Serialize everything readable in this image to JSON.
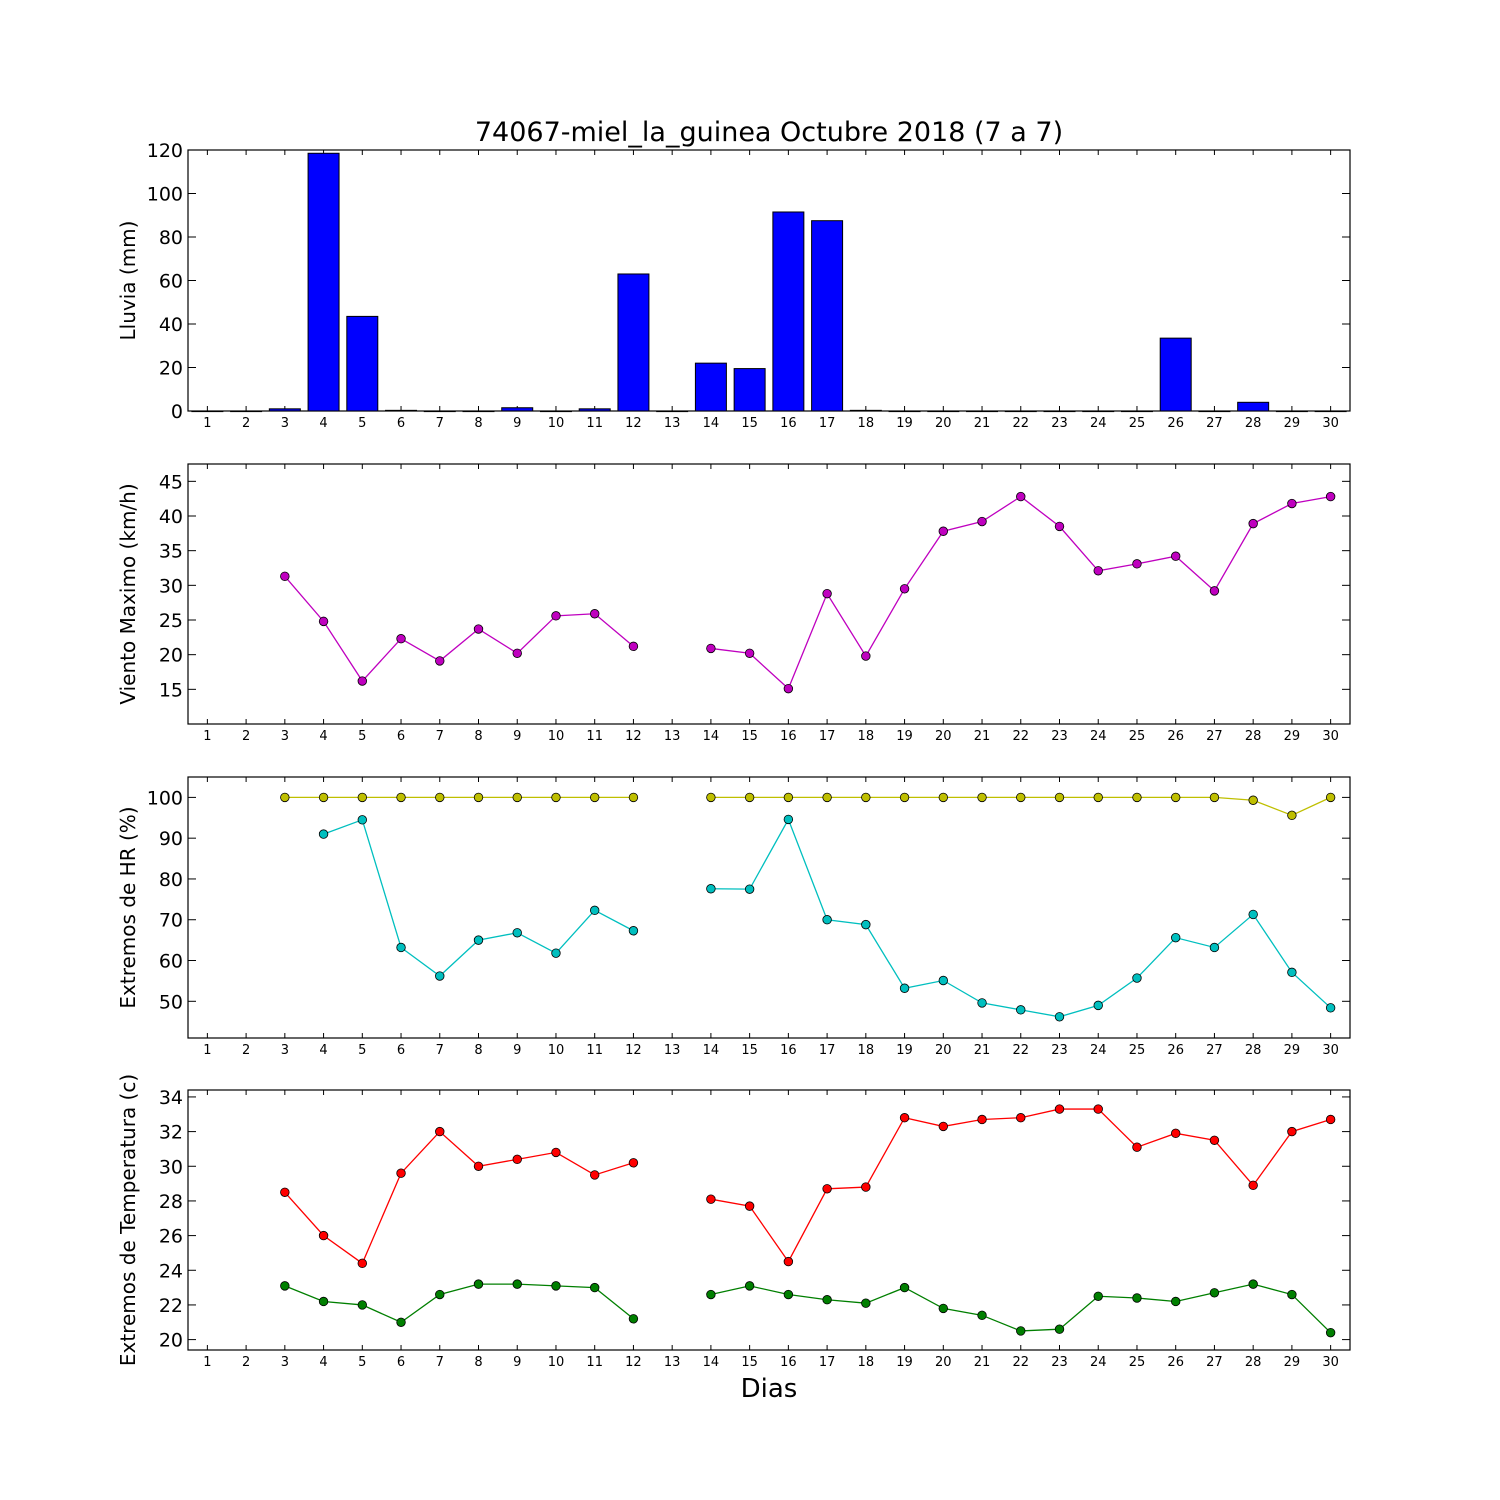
{
  "title": "74067-miel_la_guinea Octubre 2018  (7 a 7)",
  "xlabel": "Dias",
  "chart_data": [
    {
      "type": "bar",
      "ylabel": "Lluvia (mm)",
      "ylim": [
        0,
        120
      ],
      "yticks": [
        0,
        20,
        40,
        60,
        80,
        100,
        120
      ],
      "grid": false,
      "x": [
        1,
        2,
        3,
        4,
        5,
        6,
        7,
        8,
        9,
        10,
        11,
        12,
        13,
        14,
        15,
        16,
        17,
        18,
        19,
        20,
        21,
        22,
        23,
        24,
        25,
        26,
        27,
        28,
        29,
        30
      ],
      "series": [
        {
          "color": "#0000ff",
          "values": [
            0,
            0,
            1,
            118.5,
            43.5,
            0.3,
            0,
            0,
            1.5,
            0,
            1,
            63,
            0,
            22,
            19.5,
            91.5,
            87.5,
            0.3,
            0,
            0,
            0,
            0,
            0,
            0,
            0,
            33.5,
            0,
            4,
            0,
            0
          ]
        }
      ]
    },
    {
      "type": "line",
      "ylabel": "Viento Maximo (km/h)",
      "ylim": [
        10,
        47.5
      ],
      "yticks": [
        15,
        20,
        25,
        30,
        35,
        40,
        45
      ],
      "grid": false,
      "x": [
        1,
        2,
        3,
        4,
        5,
        6,
        7,
        8,
        9,
        10,
        11,
        12,
        13,
        14,
        15,
        16,
        17,
        18,
        19,
        20,
        21,
        22,
        23,
        24,
        25,
        26,
        27,
        28,
        29,
        30
      ],
      "series": [
        {
          "color": "#bf00bf",
          "values": [
            null,
            null,
            31.3,
            24.8,
            16.2,
            22.3,
            19.1,
            23.7,
            20.2,
            25.6,
            25.9,
            21.2,
            null,
            20.9,
            20.2,
            15.1,
            28.8,
            19.8,
            29.5,
            37.8,
            39.2,
            42.8,
            38.5,
            32.1,
            33.1,
            34.2,
            29.2,
            38.9,
            41.8,
            42.8
          ]
        }
      ]
    },
    {
      "type": "line",
      "ylabel": "Extremos de HR (%)",
      "ylim": [
        41,
        105
      ],
      "yticks": [
        50,
        60,
        70,
        80,
        90,
        100
      ],
      "grid": false,
      "x": [
        1,
        2,
        3,
        4,
        5,
        6,
        7,
        8,
        9,
        10,
        11,
        12,
        13,
        14,
        15,
        16,
        17,
        18,
        19,
        20,
        21,
        22,
        23,
        24,
        25,
        26,
        27,
        28,
        29,
        30
      ],
      "series": [
        {
          "color": "#bfbf00",
          "values": [
            null,
            null,
            100,
            100,
            100,
            100,
            100,
            100,
            100,
            100,
            100,
            100,
            null,
            100,
            100,
            100,
            100,
            100,
            100,
            100,
            100,
            100,
            100,
            100,
            100,
            100,
            100,
            99.3,
            95.6,
            100
          ]
        },
        {
          "color": "#00bfbf",
          "values": [
            null,
            null,
            null,
            91,
            94.5,
            63.2,
            56.2,
            65,
            66.8,
            61.8,
            72.3,
            67.3,
            null,
            77.6,
            77.5,
            94.6,
            70,
            68.8,
            53.2,
            55.1,
            49.6,
            47.9,
            46.2,
            49,
            55.7,
            65.6,
            63.2,
            71.3,
            57.1,
            48.4
          ]
        }
      ]
    },
    {
      "type": "line",
      "ylabel": "Extremos de Temperatura (c)",
      "ylim": [
        19.4,
        34.4
      ],
      "yticks": [
        20,
        22,
        24,
        26,
        28,
        30,
        32,
        34
      ],
      "grid": false,
      "x": [
        1,
        2,
        3,
        4,
        5,
        6,
        7,
        8,
        9,
        10,
        11,
        12,
        13,
        14,
        15,
        16,
        17,
        18,
        19,
        20,
        21,
        22,
        23,
        24,
        25,
        26,
        27,
        28,
        29,
        30
      ],
      "series": [
        {
          "color": "#ff0000",
          "values": [
            null,
            null,
            28.5,
            26,
            24.4,
            29.6,
            32,
            30,
            30.4,
            30.8,
            29.5,
            30.2,
            null,
            28.1,
            27.7,
            24.5,
            28.7,
            28.8,
            32.8,
            32.3,
            32.7,
            32.8,
            33.3,
            33.3,
            31.1,
            31.9,
            31.5,
            28.9,
            32,
            32.7
          ]
        },
        {
          "color": "#007f00",
          "values": [
            null,
            null,
            23.1,
            22.2,
            22,
            21,
            22.6,
            23.2,
            23.2,
            23.1,
            23,
            21.2,
            null,
            22.6,
            23.1,
            22.6,
            22.3,
            22.1,
            23,
            21.8,
            21.4,
            20.5,
            20.6,
            22.5,
            22.4,
            22.2,
            22.7,
            23.2,
            22.6,
            20.4
          ]
        }
      ]
    }
  ]
}
